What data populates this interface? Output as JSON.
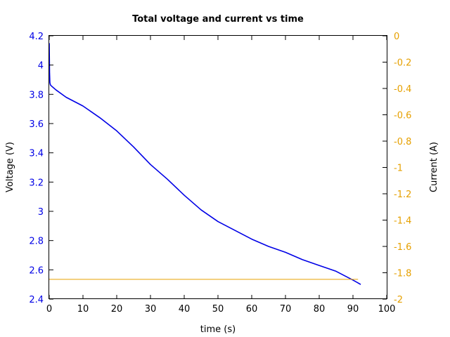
{
  "chart_data": {
    "type": "line",
    "title": "Total voltage and current vs time",
    "xlabel": "time (s)",
    "ylabel": "Voltage (V)",
    "y2label": "Current (A)",
    "xlim": [
      0,
      100
    ],
    "ylim": [
      2.4,
      4.2
    ],
    "y2lim": [
      -2,
      0
    ],
    "x_ticks": [
      "0",
      "10",
      "20",
      "30",
      "40",
      "50",
      "60",
      "70",
      "80",
      "90",
      "100"
    ],
    "y_ticks": [
      "2.4",
      "2.6",
      "2.8",
      "3",
      "3.2",
      "3.4",
      "3.6",
      "3.8",
      "4",
      "4.2"
    ],
    "y2_ticks": [
      "-2",
      "-1.8",
      "-1.6",
      "-1.4",
      "-1.2",
      "-1",
      "-0.8",
      "-0.6",
      "-0.4",
      "-0.2",
      "0"
    ],
    "grid": false,
    "colors": {
      "voltage": "#0000e6",
      "current": "#e6a000",
      "axis": "#000000"
    },
    "series": [
      {
        "axis": "left",
        "color": "#0000e6",
        "x": [
          0,
          0.1,
          0.2,
          0.35,
          0.5,
          2,
          5,
          10,
          15,
          20,
          25,
          30,
          35,
          40,
          45,
          50,
          55,
          60,
          65,
          70,
          75,
          80,
          85,
          90,
          92.3
        ],
        "y": [
          4.15,
          3.95,
          3.88,
          3.865,
          3.86,
          3.83,
          3.78,
          3.72,
          3.64,
          3.55,
          3.44,
          3.32,
          3.22,
          3.11,
          3.01,
          2.93,
          2.87,
          2.81,
          2.76,
          2.72,
          2.67,
          2.63,
          2.59,
          2.53,
          2.5
        ]
      },
      {
        "axis": "right",
        "color": "#e6a000",
        "x": [
          0,
          91.5
        ],
        "y": [
          -1.85,
          -1.85
        ]
      }
    ]
  }
}
